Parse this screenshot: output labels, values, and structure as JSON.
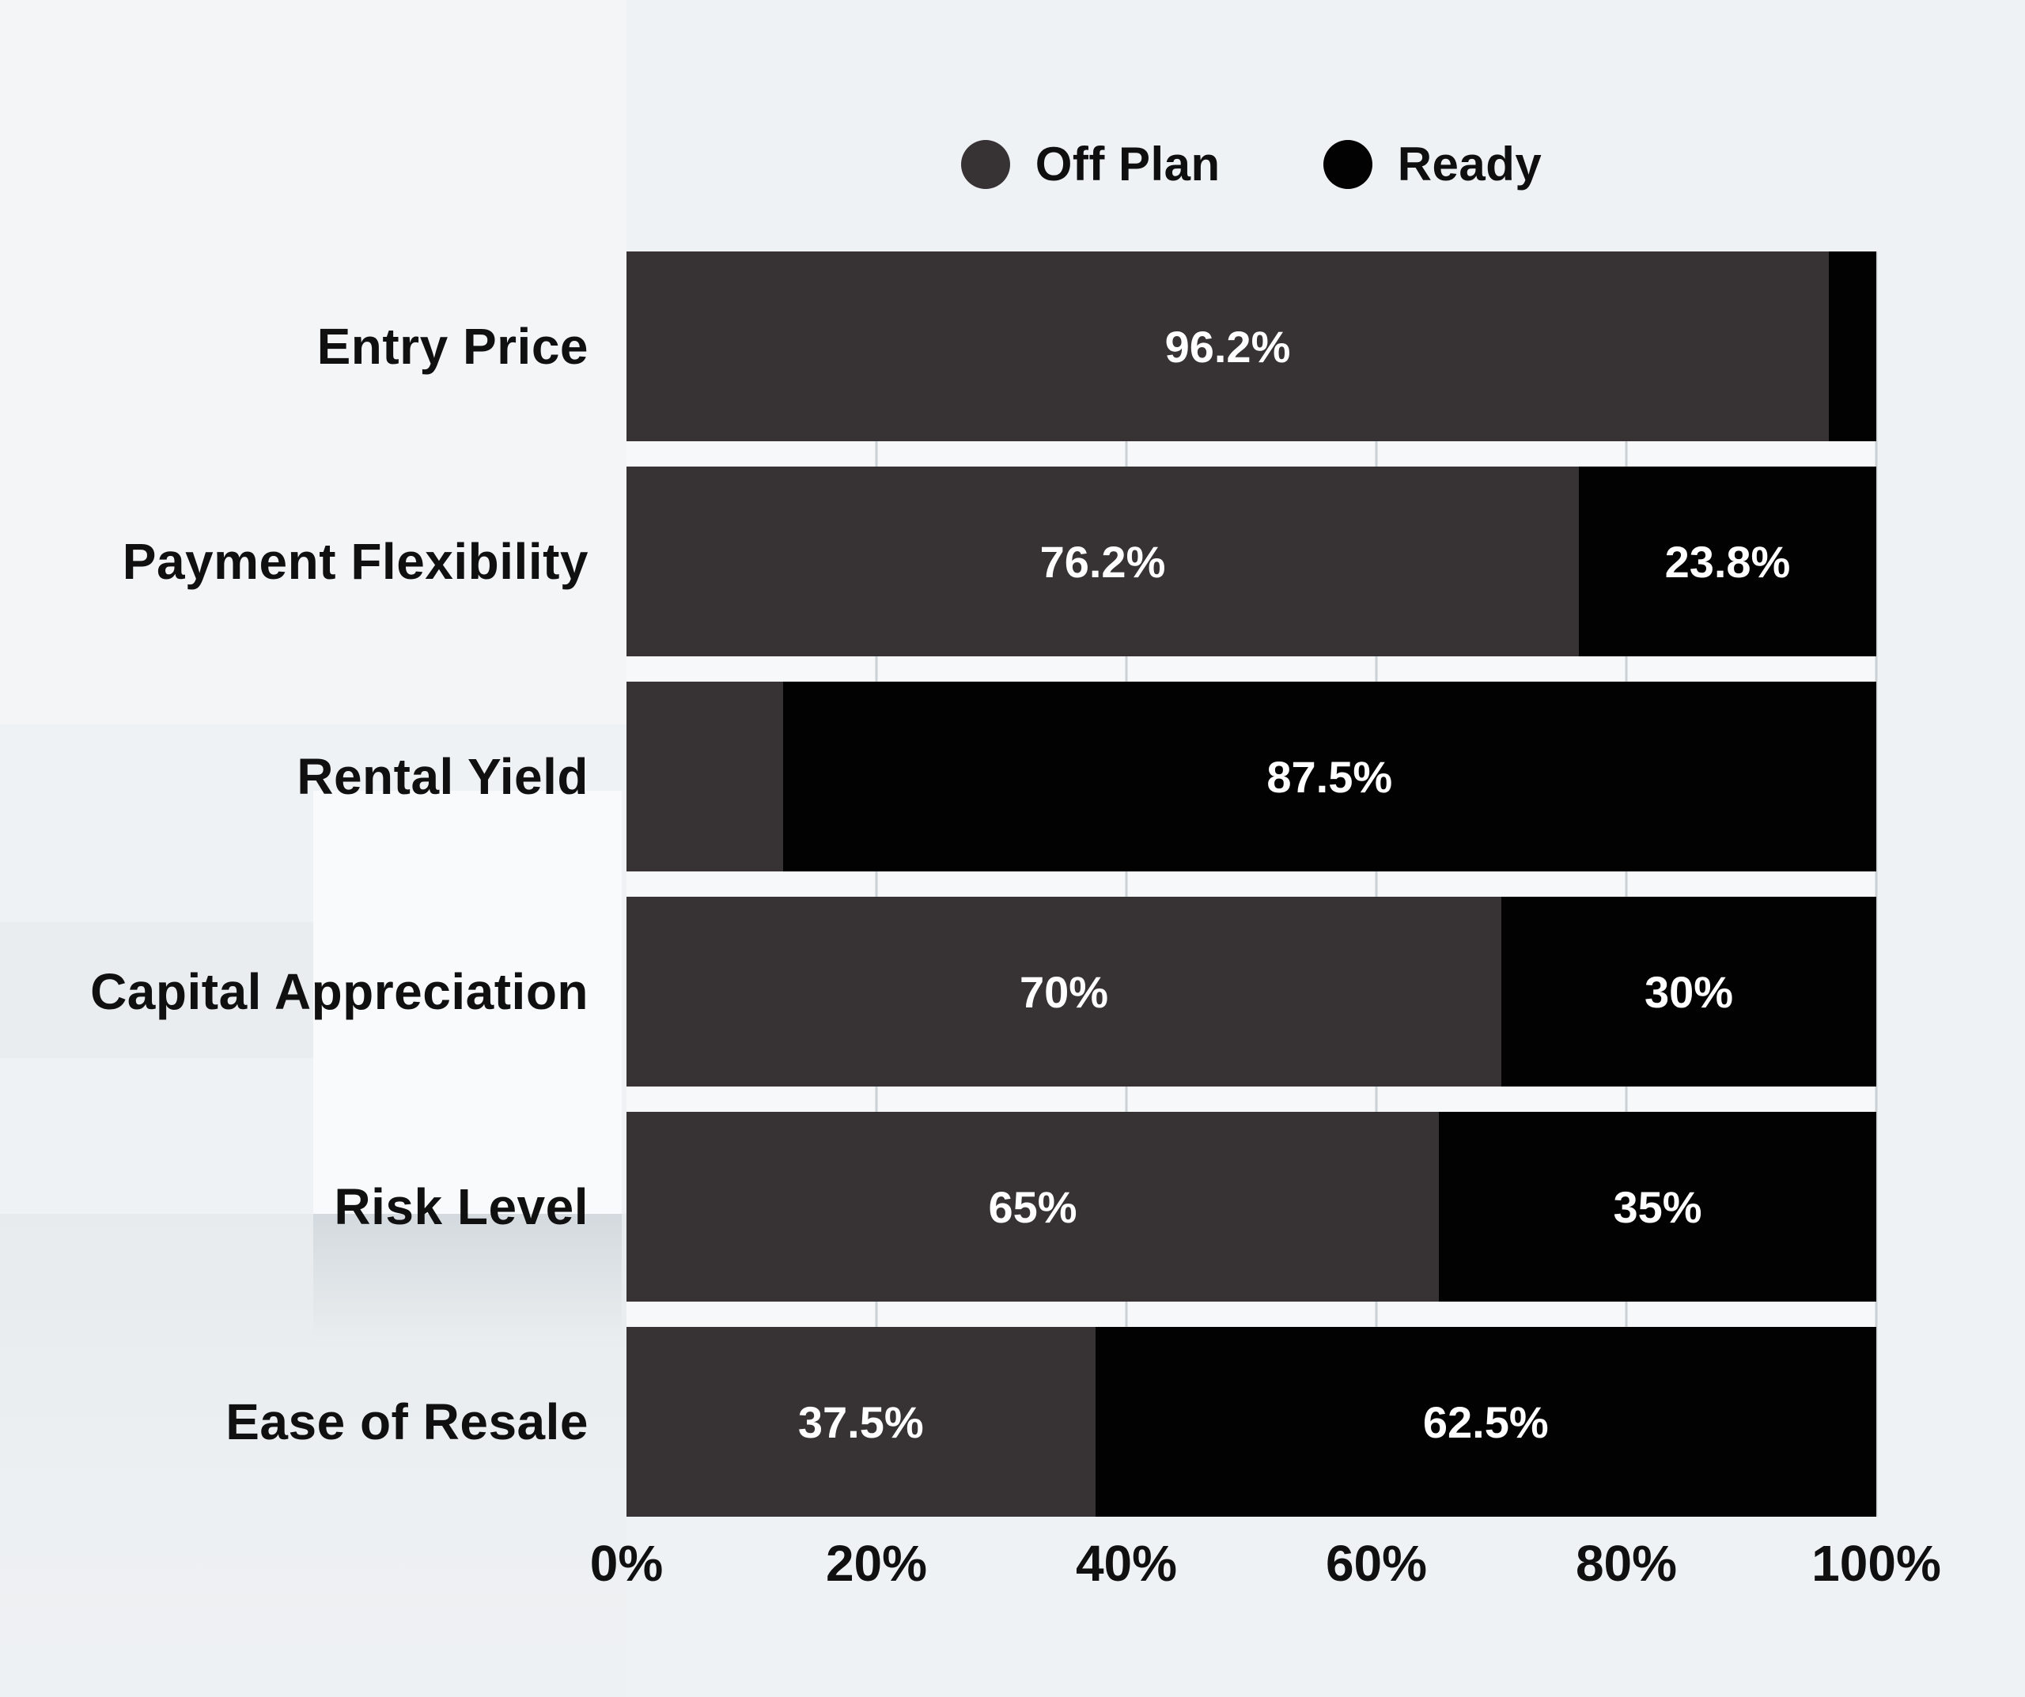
{
  "colors": {
    "off_plan": "#373334",
    "ready": "#020202",
    "page_background": "#eff2f4",
    "plot_background": "#f6f8f9",
    "gridline": "#cbd0d4",
    "text_dark": "#101010",
    "value_text": "#ffffff"
  },
  "legend": {
    "items": [
      {
        "label": "Off Plan",
        "color": "#373334"
      },
      {
        "label": "Ready",
        "color": "#020202"
      }
    ]
  },
  "rows": [
    {
      "label": "Entry Price",
      "off": 96.2,
      "ready": 3.8,
      "off_label": "96.2%",
      "ready_label": ""
    },
    {
      "label": "Payment Flexibility",
      "off": 76.2,
      "ready": 23.8,
      "off_label": "76.2%",
      "ready_label": "23.8%"
    },
    {
      "label": "Rental Yield",
      "off": 12.5,
      "ready": 87.5,
      "off_label": "",
      "ready_label": "87.5%"
    },
    {
      "label": "Capital Appreciation",
      "off": 70,
      "ready": 30,
      "off_label": "70%",
      "ready_label": "30%"
    },
    {
      "label": "Risk Level",
      "off": 65,
      "ready": 35,
      "off_label": "65%",
      "ready_label": "35%"
    },
    {
      "label": "Ease of Resale",
      "off": 37.5,
      "ready": 62.5,
      "off_label": "37.5%",
      "ready_label": "62.5%"
    }
  ],
  "axis": {
    "gridlines": [
      20,
      40,
      60,
      80,
      100
    ],
    "ticks": [
      {
        "pos": 0,
        "label": "0%"
      },
      {
        "pos": 20,
        "label": "20%"
      },
      {
        "pos": 40,
        "label": "40%"
      },
      {
        "pos": 60,
        "label": "60%"
      },
      {
        "pos": 80,
        "label": "80%"
      },
      {
        "pos": 100,
        "label": "100%"
      }
    ]
  },
  "chart_data": {
    "type": "bar",
    "orientation": "horizontal",
    "stacked": true,
    "title": "",
    "xlabel": "",
    "ylabel": "",
    "xlim": [
      0,
      100
    ],
    "grid": true,
    "legend_position": "top",
    "tick_labels": [
      "0%",
      "20%",
      "40%",
      "60%",
      "80%",
      "100%"
    ],
    "categories": [
      "Entry Price",
      "Payment Flexibility",
      "Rental Yield",
      "Capital Appreciation",
      "Risk Level",
      "Ease of Resale"
    ],
    "series": [
      {
        "name": "Off Plan",
        "color": "#373334",
        "values": [
          96.2,
          76.2,
          12.5,
          70,
          65,
          37.5
        ]
      },
      {
        "name": "Ready",
        "color": "#020202",
        "values": [
          3.8,
          23.8,
          87.5,
          30,
          35,
          62.5
        ]
      }
    ]
  }
}
